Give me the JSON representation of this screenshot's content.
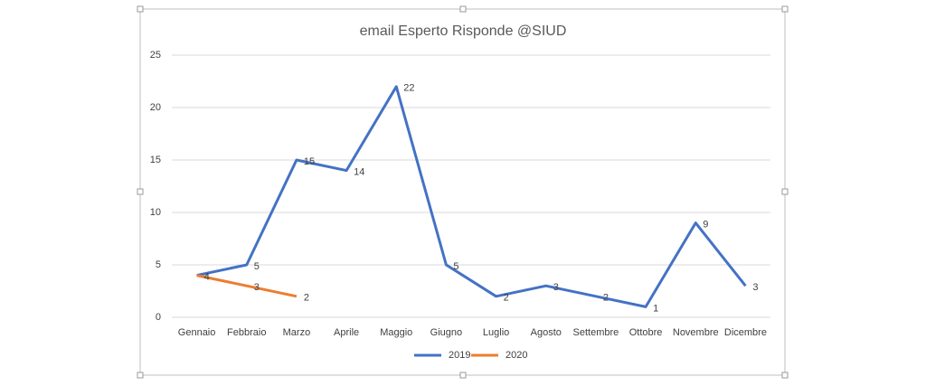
{
  "chart_data": {
    "type": "line",
    "title": "email Esperto Risponde @SIUD",
    "categories": [
      "Gennaio",
      "Febbraio",
      "Marzo",
      "Aprile",
      "Maggio",
      "Giugno",
      "Luglio",
      "Agosto",
      "Settembre",
      "Ottobre",
      "Novembre",
      "Dicembre"
    ],
    "series": [
      {
        "name": "2019",
        "color": "#4472c4",
        "values": [
          4,
          5,
          15,
          14,
          22,
          5,
          2,
          3,
          2,
          1,
          9,
          3
        ]
      },
      {
        "name": "2020",
        "color": "#ed7d31",
        "values": [
          4,
          3,
          2,
          null,
          null,
          null,
          null,
          null,
          null,
          null,
          null,
          null
        ]
      }
    ],
    "ylim": [
      0,
      25
    ],
    "yticks": [
      0,
      5,
      10,
      15,
      20,
      25
    ],
    "grid": true,
    "legend": "bottom"
  }
}
